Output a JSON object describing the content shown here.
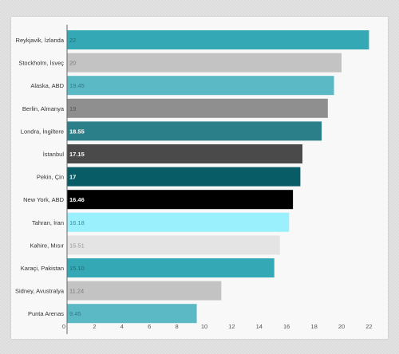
{
  "chart_data": {
    "type": "bar",
    "orientation": "horizontal",
    "title": "",
    "xlabel": "",
    "ylabel": "",
    "xlim": [
      0,
      23.5
    ],
    "ticks": [
      0,
      2,
      4,
      6,
      8,
      10,
      12,
      14,
      16,
      18,
      20,
      22
    ],
    "grid": false,
    "categories": [
      "Reykjavik, İzlanda",
      "Stockholm, İsveç",
      "Alaska, ABD",
      "Berlin, Almanya",
      "Londra, İngiltere",
      "İstanbul",
      "Pekin, Çin",
      "New York, ABD",
      "Tahran, İran",
      "Kahire, Mısır",
      "Karaçi, Pakistan",
      "Sidney, Avustralya",
      "Punta Arenas"
    ],
    "values": [
      22,
      20,
      19.45,
      19,
      18.55,
      17.15,
      17,
      16.46,
      16.18,
      15.51,
      15.1,
      11.24,
      9.45
    ],
    "value_labels": [
      "22",
      "20",
      "19.45",
      "19",
      "18.55",
      "17.15",
      "17",
      "16.46",
      "16.18",
      "15.51",
      "15.10",
      "11.24",
      "9.45"
    ],
    "colors": [
      "#34a9b5",
      "#c3c3c3",
      "#5bb9c5",
      "#8f8f8f",
      "#2b7f88",
      "#4a4a4a",
      "#075c66",
      "#000000",
      "#9af0fc",
      "#e4e4e4",
      "#34a9b5",
      "#c3c3c3",
      "#5bb9c5"
    ],
    "label_colors": [
      "#1f6d75",
      "#7a7a7a",
      "#2d7c86",
      "#555555",
      "#ffffff",
      "#ffffff",
      "#ffffff",
      "#ffffff",
      "#3b8e99",
      "#999999",
      "#1f6d75",
      "#7a7a7a",
      "#2d7c86"
    ],
    "label_bold": [
      false,
      false,
      false,
      false,
      true,
      true,
      true,
      true,
      false,
      false,
      false,
      false,
      false
    ],
    "axis_color": "#666666"
  }
}
